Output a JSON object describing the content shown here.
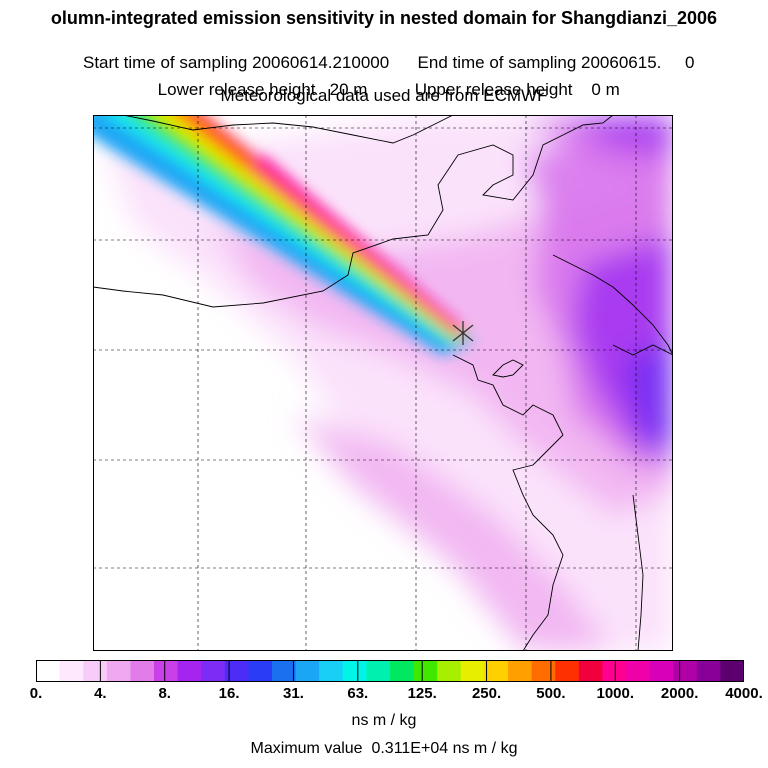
{
  "header": {
    "title": "olumn-integrated emission sensitivity in nested domain for Shangdianzi_2006",
    "start_label": "Start time of sampling 20060614.210000",
    "end_label": "End time of sampling 20060615.     0",
    "lower_label": "Lower release height   20 m",
    "upper_label": "Upper release height    0 m",
    "met_label": "Meteorological data used are from ECMWF"
  },
  "colorbar": {
    "ticks": [
      "0.",
      "4.",
      "8.",
      "16.",
      "31.",
      "63.",
      "125.",
      "250.",
      "500.",
      "1000.",
      "2000.",
      "4000."
    ],
    "unit": "ns m / kg",
    "colors": [
      "#ffffff",
      "#fde8fd",
      "#f8ccf8",
      "#f0a8f0",
      "#e27ce8",
      "#c940e8",
      "#a524f0",
      "#7d2cf5",
      "#4d2cf8",
      "#2a3cf5",
      "#1a70ee",
      "#1aa6f5",
      "#18d0f5",
      "#00f5e8",
      "#00f0b0",
      "#00e860",
      "#40e800",
      "#a8ee00",
      "#e8ee00",
      "#ffd000",
      "#ffa000",
      "#ff6c00",
      "#ff3000",
      "#f0003c",
      "#ff0090",
      "#f000a8",
      "#d800b8",
      "#b000a8",
      "#880098",
      "#5c0070"
    ]
  },
  "max_value": "Maximum value  0.311E+04 ns m / kg",
  "map": {
    "release_marker": "release-site",
    "plume_colors": {
      "outer": "#1aa6f5",
      "cyan": "#18e8f0",
      "green": "#40e800",
      "yellow": "#e8ee00",
      "orange": "#ff8000",
      "red": "#ff1020",
      "core": "#ff0090"
    },
    "background_colors": {
      "light": "#fbe2fb",
      "medium": "#f1b4f1",
      "deep": "#d670ec",
      "purple": "#a030f0",
      "blue": "#6a2cf2"
    }
  }
}
